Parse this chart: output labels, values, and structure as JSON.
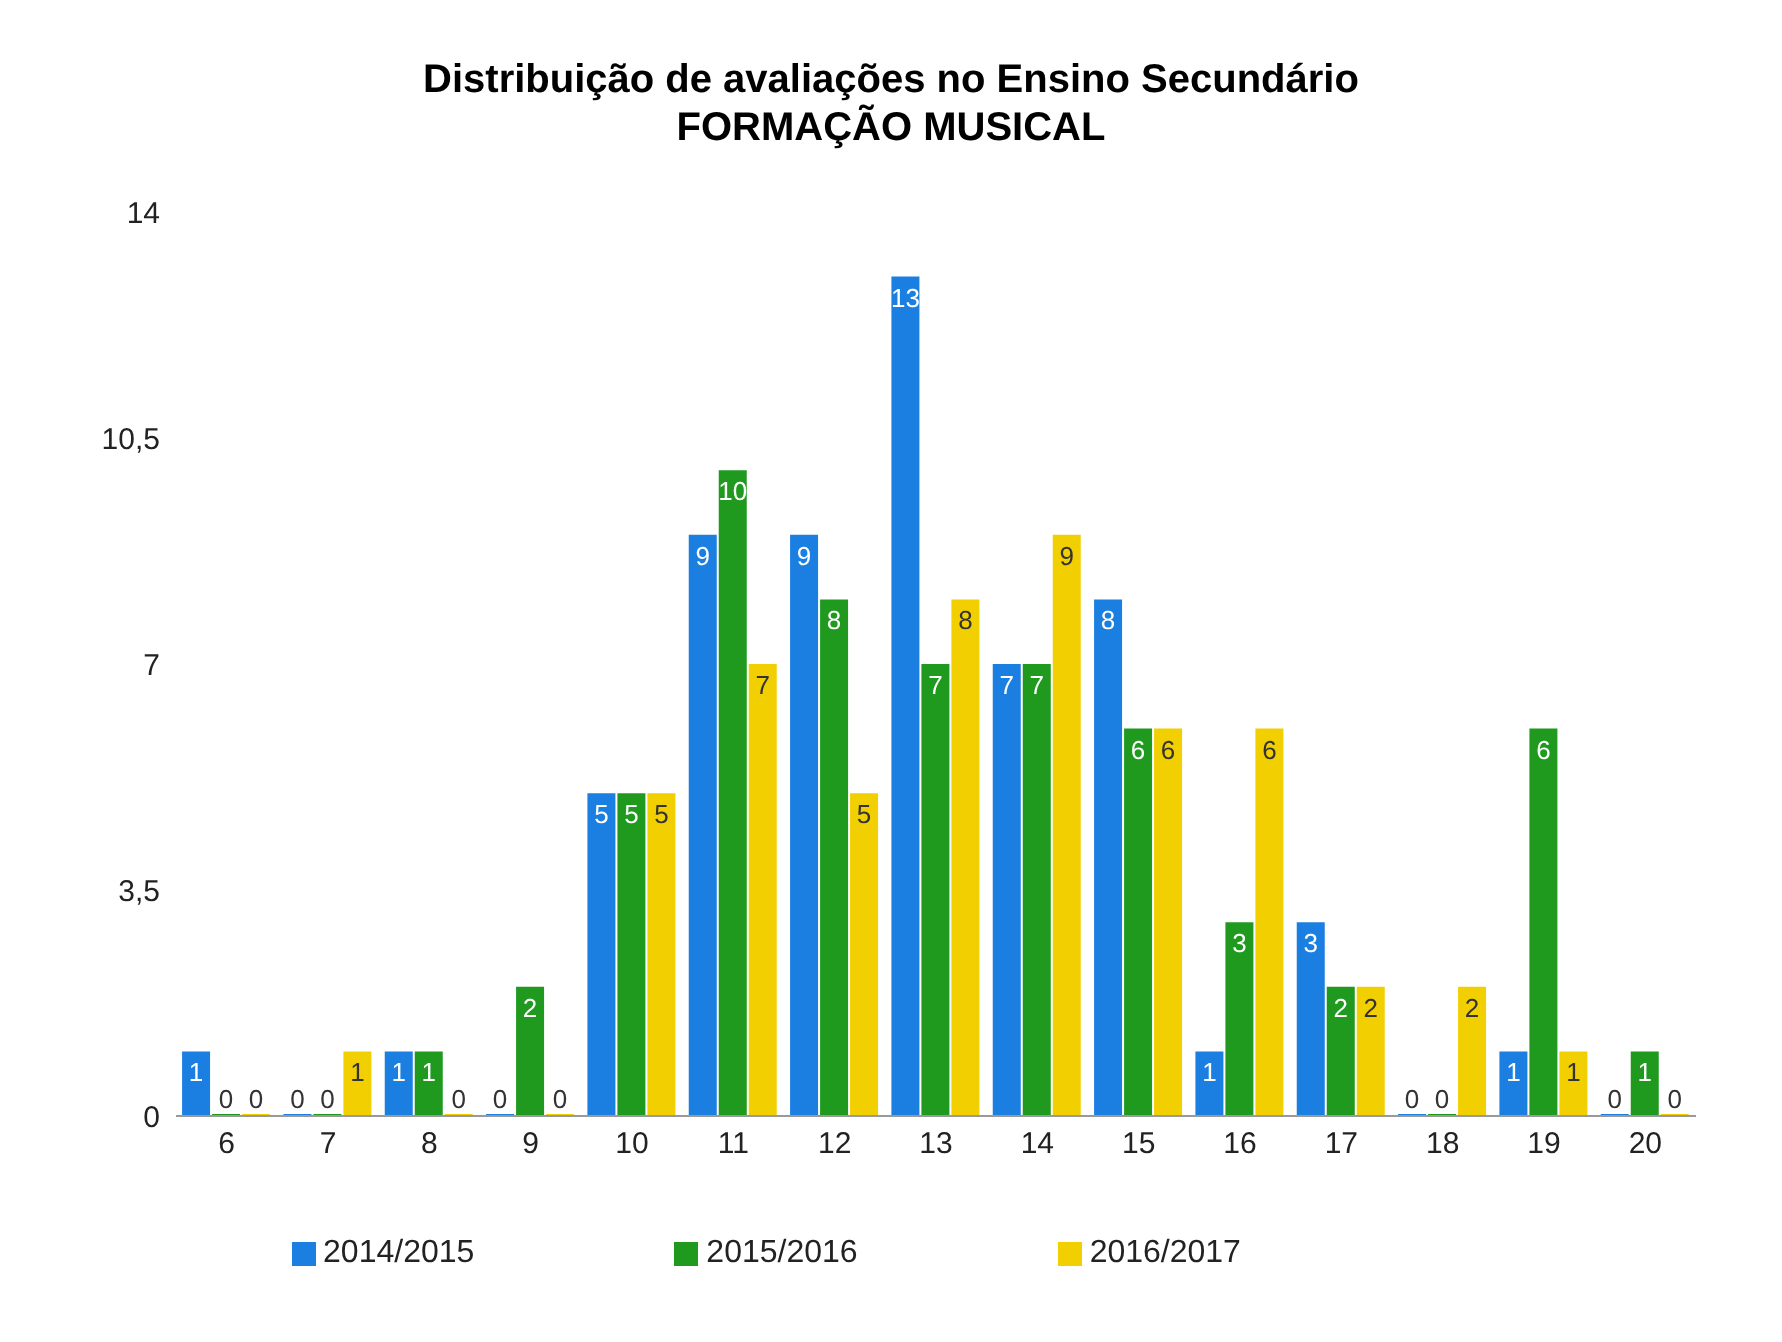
{
  "chart_data": {
    "type": "bar",
    "title": "Distribuição de avaliações no Ensino Secundário",
    "subtitle": "FORMAÇÃO MUSICAL",
    "categories": [
      "6",
      "7",
      "8",
      "9",
      "10",
      "11",
      "12",
      "13",
      "14",
      "15",
      "16",
      "17",
      "18",
      "19",
      "20"
    ],
    "series": [
      {
        "name": "2014/2015",
        "color": "#1a7fe0",
        "values": [
          1,
          0,
          1,
          0,
          5,
          9,
          9,
          13,
          7,
          8,
          1,
          3,
          0,
          1,
          0
        ]
      },
      {
        "name": "2015/2016",
        "color": "#1f9a1f",
        "values": [
          0,
          0,
          1,
          2,
          5,
          10,
          8,
          7,
          7,
          6,
          3,
          2,
          0,
          6,
          1
        ]
      },
      {
        "name": "2016/2017",
        "color": "#f2cf00",
        "values": [
          0,
          1,
          0,
          0,
          5,
          7,
          5,
          8,
          9,
          6,
          6,
          2,
          2,
          1,
          0
        ]
      }
    ],
    "ylim": [
      0,
      14
    ],
    "yticks": [
      0,
      {
        "value": 3.5,
        "label": "3,5"
      },
      7,
      {
        "value": 10.5,
        "label": "10,5"
      },
      14
    ],
    "grid": false,
    "legend": "bottom",
    "data_labels": true
  }
}
